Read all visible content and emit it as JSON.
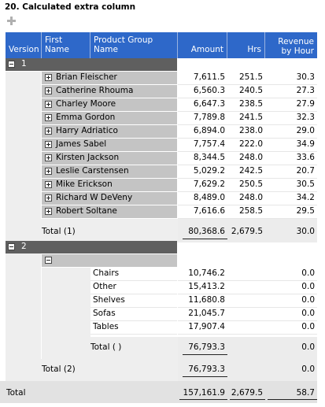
{
  "title": "20. Calculated extra column",
  "add_icon": "plus-icon",
  "headers": {
    "version": "Version",
    "first_name": "First Name",
    "product_group": "Product Group Name",
    "amount": "Amount",
    "hrs": "Hrs",
    "rev_line1": "Revenue",
    "rev_line2": "by Hour"
  },
  "version1": {
    "label": "1",
    "rows": [
      {
        "name": "Brian Fleischer",
        "amount": "7,611.5",
        "hrs": "251.5",
        "rev": "30.3"
      },
      {
        "name": "Catherine Rhouma",
        "amount": "6,560.3",
        "hrs": "240.5",
        "rev": "27.3"
      },
      {
        "name": "Charley Moore",
        "amount": "6,647.3",
        "hrs": "238.5",
        "rev": "27.9"
      },
      {
        "name": "Emma Gordon",
        "amount": "7,789.8",
        "hrs": "241.5",
        "rev": "32.3"
      },
      {
        "name": "Harry Adriatico",
        "amount": "6,894.0",
        "hrs": "238.0",
        "rev": "29.0"
      },
      {
        "name": "James Sabel",
        "amount": "7,757.4",
        "hrs": "222.0",
        "rev": "34.9"
      },
      {
        "name": "Kirsten Jackson",
        "amount": "8,344.5",
        "hrs": "248.0",
        "rev": "33.6"
      },
      {
        "name": "Leslie Carstensen",
        "amount": "5,029.2",
        "hrs": "242.5",
        "rev": "20.7"
      },
      {
        "name": "Mike Erickson",
        "amount": "7,629.2",
        "hrs": "250.5",
        "rev": "30.5"
      },
      {
        "name": "Richard W DeVeny",
        "amount": "8,489.0",
        "hrs": "248.0",
        "rev": "34.2"
      },
      {
        "name": "Robert Soltane",
        "amount": "7,616.6",
        "hrs": "258.5",
        "rev": "29.5"
      }
    ],
    "total_label": "Total (1)",
    "total_amount": "80,368.6",
    "total_hrs": "2,679.5",
    "total_rev": "30.0"
  },
  "version2": {
    "label": "2",
    "categories": [
      {
        "name": "Chairs",
        "amount": "10,746.2",
        "hrs": "",
        "rev": "0.0"
      },
      {
        "name": "Other",
        "amount": "15,413.2",
        "hrs": "",
        "rev": "0.0"
      },
      {
        "name": "Shelves",
        "amount": "11,680.8",
        "hrs": "",
        "rev": "0.0"
      },
      {
        "name": "Sofas",
        "amount": "21,045.7",
        "hrs": "",
        "rev": "0.0"
      },
      {
        "name": "Tables",
        "amount": "17,907.4",
        "hrs": "",
        "rev": "0.0"
      }
    ],
    "sub_total_label": "Total ( )",
    "sub_total_amount": "76,793.3",
    "sub_total_rev": "0.0",
    "total_label": "Total (2)",
    "total_amount": "76,793.3",
    "total_rev": "0.0"
  },
  "grand_total": {
    "label": "Total",
    "amount": "157,161.9",
    "hrs": "2,679.5",
    "rev": "58.7"
  }
}
